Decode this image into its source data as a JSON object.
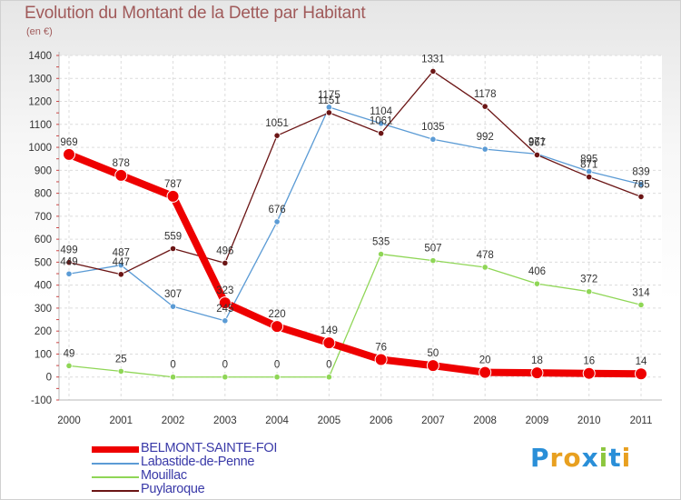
{
  "header": {
    "title": "Evolution du Montant de la Dette par Habitant",
    "subtitle": "(en €)"
  },
  "chart_data": {
    "type": "line",
    "title": "Evolution du Montant de la Dette par Habitant",
    "ylabel": "(en €)",
    "xlabel": "",
    "x": [
      2000,
      2001,
      2002,
      2003,
      2004,
      2005,
      2006,
      2007,
      2008,
      2009,
      2010,
      2011
    ],
    "ylim": [
      -100,
      1400
    ],
    "yticks": [
      -100,
      0,
      100,
      200,
      300,
      400,
      500,
      600,
      700,
      800,
      900,
      1000,
      1100,
      1200,
      1300,
      1400
    ],
    "grid": true,
    "series": [
      {
        "name": "BELMONT-SAINTE-FOI",
        "color": "#ee0000",
        "emphasis": true,
        "values": [
          969,
          878,
          787,
          323,
          220,
          149,
          76,
          50,
          20,
          18,
          16,
          14
        ]
      },
      {
        "name": "Labastide-de-Penne",
        "color": "#5b9bd5",
        "values": [
          449,
          487,
          307,
          245,
          676,
          1175,
          1104,
          1035,
          992,
          971,
          895,
          839
        ]
      },
      {
        "name": "Mouillac",
        "color": "#8fd656",
        "values": [
          49,
          25,
          0,
          0,
          0,
          0,
          535,
          507,
          478,
          406,
          372,
          314
        ]
      },
      {
        "name": "Puylaroque",
        "color": "#6b1515",
        "values": [
          499,
          447,
          559,
          496,
          1051,
          1151,
          1061,
          1331,
          1178,
          967,
          871,
          785
        ]
      }
    ]
  },
  "logo": {
    "letters": [
      "P",
      "r",
      "o",
      "x",
      "i",
      "t",
      "i"
    ],
    "colors": [
      "#2a8fd8",
      "#e8a020",
      "#e8a020",
      "#2a8fd8",
      "#8cc63e",
      "#2a8fd8",
      "#e8a020"
    ]
  }
}
